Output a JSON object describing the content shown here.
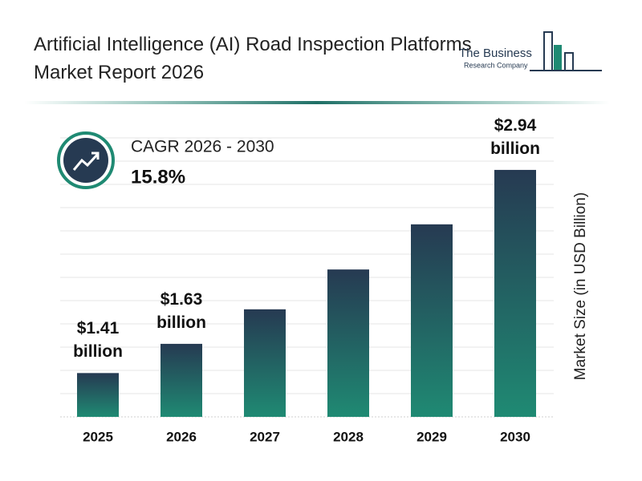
{
  "chart_data": {
    "type": "bar",
    "title": "Artificial Intelligence (AI) Road Inspection Platforms Market Report 2026",
    "brand": {
      "line1": "The Business",
      "line2": "Research Company"
    },
    "annotation": {
      "label": "CAGR 2026 - 2030",
      "value": "15.8%"
    },
    "ylabel": "Market Size (in USD Billion)",
    "categories": [
      "2025",
      "2026",
      "2027",
      "2028",
      "2029",
      "2030"
    ],
    "values": [
      1.41,
      1.63,
      1.89,
      2.19,
      2.53,
      2.94
    ],
    "value_labels": [
      "$1.41 billion",
      "$1.63 billion",
      null,
      null,
      null,
      "$2.94 billion"
    ],
    "color_top": "#263a52",
    "color_bottom": "#1f8a73",
    "ylim": [
      1.08,
      3.0
    ]
  }
}
